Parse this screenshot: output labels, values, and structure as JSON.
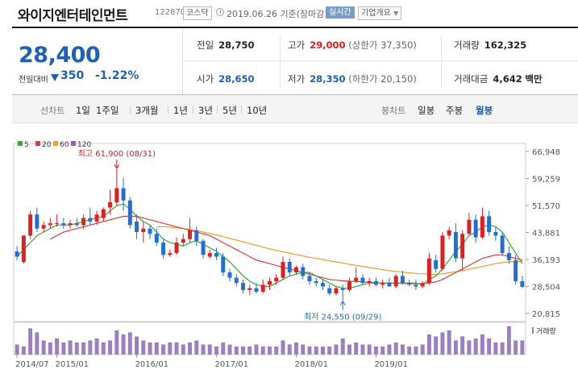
{
  "header": {
    "company": "와이지엔터테인먼트",
    "code": "122870",
    "market": "코스닥",
    "asof": "2019.06.26 기준(장마감)",
    "realtime": "실시간",
    "corp_info": "기업개요"
  },
  "quote": {
    "price": "28,400",
    "diff_label": "전일대비",
    "diff": "350",
    "pct": "-1.22%",
    "prev_close_label": "전일",
    "prev_close": "28,750",
    "high_label": "고가",
    "high": "29,000",
    "upper_limit": "(상한가 37,350)",
    "volume_label": "거래량",
    "volume": "162,325",
    "open_label": "시가",
    "open": "28,650",
    "low_label": "저가",
    "low": "28,350",
    "lower_limit": "(하한가 20,150)",
    "amount_label": "거래대금",
    "amount": "4,642",
    "amount_unit": "백만"
  },
  "period_bar": {
    "line_label": "선차트",
    "periods": [
      "1일",
      "1주일",
      "3개월",
      "1년",
      "3년",
      "5년",
      "10년"
    ],
    "candle_label": "봉차트",
    "candles": [
      "일봉",
      "주봉",
      "월봉"
    ],
    "active_candle": "월봉"
  },
  "colors": {
    "up": "#e02020",
    "down": "#1f6fd6",
    "ma5": "#3aa53a",
    "ma20": "#e23b3b",
    "ma60": "#f39c2b",
    "ma120": "#9b5bb8",
    "volume": "#9b7ec4"
  },
  "chart_data": {
    "type": "candlestick",
    "legend": [
      "5",
      "20",
      "60",
      "120"
    ],
    "y_ticks": [
      "66,948",
      "59,259",
      "51,570",
      "43,881",
      "36,193",
      "28,504",
      "20,815"
    ],
    "ylim": [
      20815,
      66948
    ],
    "x_ticks": [
      "2014/07",
      "2015/01",
      "2016/01",
      "2017/01",
      "2018/01",
      "2019/01"
    ],
    "volume_label": "거래량",
    "annotations": {
      "high": {
        "label": "최고 61,900 (08/31)",
        "value": 61900,
        "index": 15
      },
      "low": {
        "label": "최저 24,550 (09/29)",
        "value": 24550,
        "index": 49
      }
    },
    "candles": [
      {
        "o": 38500,
        "h": 40000,
        "l": 36000,
        "c": 37000
      },
      {
        "o": 35500,
        "h": 43000,
        "l": 35000,
        "c": 43000
      },
      {
        "o": 43000,
        "h": 50000,
        "l": 42000,
        "c": 49000
      },
      {
        "o": 49000,
        "h": 51000,
        "l": 44000,
        "c": 45000
      },
      {
        "o": 45000,
        "h": 47000,
        "l": 44000,
        "c": 46000
      },
      {
        "o": 46000,
        "h": 48000,
        "l": 45000,
        "c": 46500
      },
      {
        "o": 46500,
        "h": 49000,
        "l": 45500,
        "c": 46500
      },
      {
        "o": 46500,
        "h": 48000,
        "l": 45000,
        "c": 46000
      },
      {
        "o": 46000,
        "h": 47500,
        "l": 45000,
        "c": 46500
      },
      {
        "o": 46500,
        "h": 48000,
        "l": 45500,
        "c": 46000
      },
      {
        "o": 46000,
        "h": 49000,
        "l": 45000,
        "c": 48000
      },
      {
        "o": 48000,
        "h": 51000,
        "l": 46000,
        "c": 47000
      },
      {
        "o": 47000,
        "h": 50000,
        "l": 46000,
        "c": 49000
      },
      {
        "o": 48000,
        "h": 51000,
        "l": 47000,
        "c": 50500
      },
      {
        "o": 51000,
        "h": 56000,
        "l": 49000,
        "c": 52500
      },
      {
        "o": 52500,
        "h": 61900,
        "l": 51500,
        "c": 56500
      },
      {
        "o": 56500,
        "h": 59500,
        "l": 50000,
        "c": 53000
      },
      {
        "o": 53000,
        "h": 54000,
        "l": 45000,
        "c": 46000
      },
      {
        "o": 47000,
        "h": 49000,
        "l": 42000,
        "c": 44000
      },
      {
        "o": 44000,
        "h": 47000,
        "l": 41000,
        "c": 45000
      },
      {
        "o": 45000,
        "h": 46000,
        "l": 42000,
        "c": 43500
      },
      {
        "o": 43500,
        "h": 45000,
        "l": 40000,
        "c": 41000
      },
      {
        "o": 41000,
        "h": 42000,
        "l": 36500,
        "c": 37500
      },
      {
        "o": 37500,
        "h": 39000,
        "l": 37000,
        "c": 38000
      },
      {
        "o": 38000,
        "h": 42500,
        "l": 37500,
        "c": 41000
      },
      {
        "o": 41000,
        "h": 43500,
        "l": 40000,
        "c": 42000
      },
      {
        "o": 42000,
        "h": 48000,
        "l": 41000,
        "c": 44500
      },
      {
        "o": 44500,
        "h": 45500,
        "l": 40000,
        "c": 41500
      },
      {
        "o": 41500,
        "h": 42000,
        "l": 36500,
        "c": 37500
      },
      {
        "o": 37000,
        "h": 39000,
        "l": 36500,
        "c": 38000
      },
      {
        "o": 38000,
        "h": 39500,
        "l": 36000,
        "c": 37000
      },
      {
        "o": 37000,
        "h": 38000,
        "l": 31500,
        "c": 32500
      },
      {
        "o": 32500,
        "h": 33500,
        "l": 30000,
        "c": 31000
      },
      {
        "o": 31000,
        "h": 32000,
        "l": 28500,
        "c": 29500
      },
      {
        "o": 29500,
        "h": 30500,
        "l": 26500,
        "c": 27500
      },
      {
        "o": 27500,
        "h": 29000,
        "l": 26000,
        "c": 28000
      },
      {
        "o": 28000,
        "h": 29500,
        "l": 26500,
        "c": 27000
      },
      {
        "o": 27000,
        "h": 30500,
        "l": 26500,
        "c": 29000
      },
      {
        "o": 29000,
        "h": 31000,
        "l": 27500,
        "c": 30000
      },
      {
        "o": 30000,
        "h": 32000,
        "l": 29000,
        "c": 31000
      },
      {
        "o": 31000,
        "h": 37000,
        "l": 30500,
        "c": 35500
      },
      {
        "o": 35500,
        "h": 36500,
        "l": 31500,
        "c": 32500
      },
      {
        "o": 32500,
        "h": 34500,
        "l": 32000,
        "c": 34000
      },
      {
        "o": 34000,
        "h": 35000,
        "l": 30500,
        "c": 31500
      },
      {
        "o": 31500,
        "h": 32500,
        "l": 29000,
        "c": 30000
      },
      {
        "o": 30000,
        "h": 31000,
        "l": 28500,
        "c": 29500
      },
      {
        "o": 29500,
        "h": 30500,
        "l": 27500,
        "c": 28500
      },
      {
        "o": 28000,
        "h": 29000,
        "l": 26000,
        "c": 26500
      },
      {
        "o": 26500,
        "h": 28500,
        "l": 26000,
        "c": 28000
      },
      {
        "o": 28000,
        "h": 29000,
        "l": 24550,
        "c": 27500
      },
      {
        "o": 27500,
        "h": 31000,
        "l": 27000,
        "c": 30000
      },
      {
        "o": 30000,
        "h": 34000,
        "l": 29500,
        "c": 31000
      },
      {
        "o": 31000,
        "h": 32000,
        "l": 29000,
        "c": 29500
      },
      {
        "o": 29500,
        "h": 31000,
        "l": 28500,
        "c": 30000
      },
      {
        "o": 30000,
        "h": 31000,
        "l": 28500,
        "c": 29000
      },
      {
        "o": 29000,
        "h": 30500,
        "l": 28000,
        "c": 29500
      },
      {
        "o": 29500,
        "h": 31000,
        "l": 28500,
        "c": 28500
      },
      {
        "o": 28500,
        "h": 32000,
        "l": 28000,
        "c": 31500
      },
      {
        "o": 31500,
        "h": 33000,
        "l": 29000,
        "c": 29500
      },
      {
        "o": 29500,
        "h": 30500,
        "l": 28500,
        "c": 29000
      },
      {
        "o": 29000,
        "h": 30500,
        "l": 27500,
        "c": 28500
      },
      {
        "o": 28500,
        "h": 30000,
        "l": 28000,
        "c": 29500
      },
      {
        "o": 29500,
        "h": 38000,
        "l": 29000,
        "c": 36500
      },
      {
        "o": 36000,
        "h": 37500,
        "l": 32500,
        "c": 33500
      },
      {
        "o": 33500,
        "h": 44000,
        "l": 33000,
        "c": 43000
      },
      {
        "o": 43000,
        "h": 45500,
        "l": 42000,
        "c": 44500
      },
      {
        "o": 44000,
        "h": 46500,
        "l": 35500,
        "c": 36500
      },
      {
        "o": 36500,
        "h": 44500,
        "l": 33000,
        "c": 43500
      },
      {
        "o": 43500,
        "h": 49500,
        "l": 43000,
        "c": 47500
      },
      {
        "o": 47500,
        "h": 49000,
        "l": 41000,
        "c": 42500
      },
      {
        "o": 42500,
        "h": 51000,
        "l": 42000,
        "c": 48500
      },
      {
        "o": 48500,
        "h": 50000,
        "l": 43000,
        "c": 44000
      },
      {
        "o": 44000,
        "h": 45500,
        "l": 41500,
        "c": 43000
      },
      {
        "o": 43000,
        "h": 44000,
        "l": 37500,
        "c": 38000
      },
      {
        "o": 38000,
        "h": 40000,
        "l": 35000,
        "c": 36000
      },
      {
        "o": 36000,
        "h": 37500,
        "l": 29000,
        "c": 30000
      },
      {
        "o": 30000,
        "h": 31500,
        "l": 28000,
        "c": 28400
      }
    ],
    "ma5": [
      37000,
      39000,
      41000,
      43000,
      44000,
      45000,
      46000,
      46000,
      46000,
      46500,
      47000,
      47500,
      48000,
      48500,
      50000,
      51500,
      52000,
      50500,
      48500,
      47000,
      46000,
      44000,
      42000,
      41000,
      40500,
      40000,
      41000,
      41500,
      40500,
      39500,
      38500,
      37000,
      35500,
      33500,
      31500,
      30000,
      29000,
      28500,
      28500,
      29500,
      30500,
      31500,
      32000,
      32500,
      32500,
      31500,
      30500,
      29500,
      28500,
      28000,
      28000,
      28500,
      29000,
      29500,
      29500,
      29500,
      29500,
      29500,
      29500,
      29500,
      29500,
      29000,
      30500,
      31500,
      33500,
      36000,
      38500,
      40500,
      43000,
      44000,
      45500,
      46000,
      45500,
      44000,
      41000,
      38000,
      35000
    ],
    "ma20": [
      null,
      null,
      null,
      null,
      null,
      42000,
      43000,
      44000,
      44500,
      45000,
      45500,
      46000,
      46500,
      47000,
      47500,
      48000,
      48500,
      48500,
      48500,
      48000,
      47500,
      47000,
      46500,
      46000,
      45500,
      45000,
      44500,
      44000,
      43500,
      43000,
      42000,
      41000,
      40000,
      39000,
      38000,
      37000,
      36000,
      35500,
      35000,
      34500,
      34000,
      33500,
      33000,
      32500,
      32000,
      31500,
      31000,
      30500,
      30300,
      30100,
      30000,
      29900,
      29800,
      29700,
      29600,
      29500,
      29500,
      29400,
      29400,
      29300,
      29300,
      29300,
      29500,
      29800,
      30500,
      31500,
      32500,
      33500,
      34500,
      35500,
      36500,
      37000,
      37500,
      37500,
      37000,
      36500,
      36000
    ],
    "ma60": [
      null,
      null,
      null,
      null,
      null,
      null,
      null,
      null,
      null,
      null,
      null,
      null,
      null,
      null,
      null,
      null,
      null,
      null,
      null,
      null,
      null,
      45500,
      45500,
      45400,
      45200,
      45000,
      44700,
      44400,
      44000,
      43600,
      43200,
      42700,
      42200,
      41700,
      41200,
      40700,
      40200,
      39700,
      39200,
      38800,
      38400,
      38000,
      37600,
      37200,
      36800,
      36500,
      36200,
      35800,
      35500,
      35200,
      34800,
      34500,
      34200,
      33900,
      33600,
      33300,
      33000,
      32800,
      32600,
      32400,
      32200,
      32100,
      32000,
      31900,
      32100,
      32400,
      32700,
      33000,
      33400,
      33800,
      34200,
      34600,
      35000,
      35300,
      35500,
      35600,
      35600
    ],
    "volume": [
      2.5,
      2,
      6.5,
      5.5,
      3.5,
      3,
      4,
      3,
      3.5,
      3,
      3,
      3.5,
      4,
      3,
      3.5,
      6,
      5,
      5.5,
      4.5,
      3.5,
      3,
      3,
      2.5,
      3,
      3,
      2.5,
      3,
      3.5,
      2.5,
      2.5,
      2,
      3,
      2.5,
      2,
      2,
      2,
      2.5,
      2,
      2,
      2,
      3.5,
      2.5,
      3,
      2.5,
      2,
      2,
      2,
      2,
      2.5,
      4,
      2.5,
      3,
      2.5,
      2.5,
      2,
      2,
      2.5,
      3,
      2.5,
      2,
      2,
      2.5,
      5,
      4.5,
      5.5,
      6,
      3.5,
      4.5,
      3.5,
      4,
      5,
      4,
      3,
      3,
      7,
      3.5,
      3.5
    ]
  }
}
